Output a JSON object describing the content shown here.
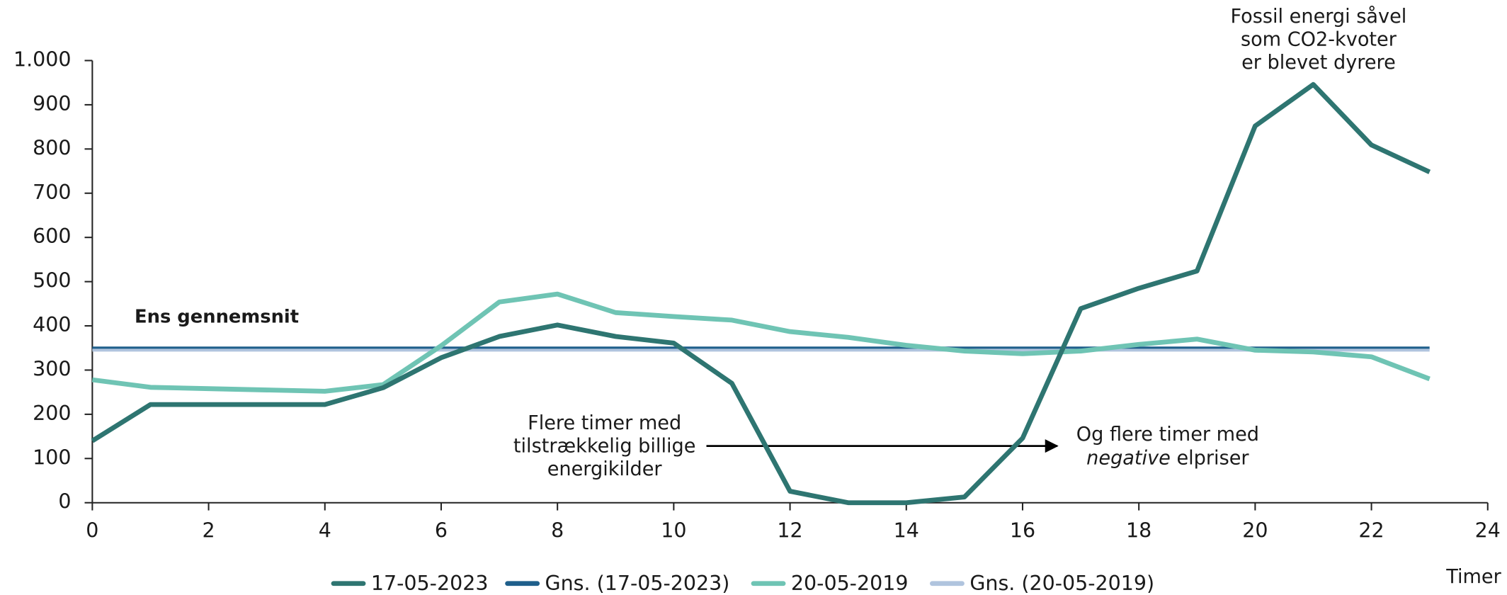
{
  "chart_data": {
    "type": "line",
    "x": [
      0,
      1,
      2,
      3,
      4,
      5,
      6,
      7,
      8,
      9,
      10,
      11,
      12,
      13,
      14,
      15,
      16,
      17,
      18,
      19,
      20,
      21,
      22,
      23
    ],
    "series": [
      {
        "name": "17-05-2023",
        "color": "#2e7571",
        "values": [
          140,
          222,
          222,
          222,
          222,
          260,
          328,
          376,
          402,
          376,
          361,
          270,
          26,
          0,
          0,
          13,
          146,
          439,
          485,
          524,
          852,
          946,
          809,
          748
        ]
      },
      {
        "name": "Gns. (17-05-2023)",
        "color": "#1f5f8b",
        "values": [
          350,
          350,
          350,
          350,
          350,
          350,
          350,
          350,
          350,
          350,
          350,
          350,
          350,
          350,
          350,
          350,
          350,
          350,
          350,
          350,
          350,
          350,
          350,
          350
        ]
      },
      {
        "name": "20-05-2019",
        "color": "#6fc4b4",
        "values": [
          278,
          261,
          258,
          255,
          252,
          267,
          355,
          454,
          472,
          430,
          421,
          413,
          387,
          374,
          356,
          343,
          337,
          343,
          358,
          370,
          345,
          341,
          330,
          280
        ]
      },
      {
        "name": "Gns. (20-05-2019)",
        "color": "#b0c4de",
        "values": [
          345,
          345,
          345,
          345,
          345,
          345,
          345,
          345,
          345,
          345,
          345,
          345,
          345,
          345,
          345,
          345,
          345,
          345,
          345,
          345,
          345,
          345,
          345,
          345
        ]
      }
    ],
    "xlim": [
      0,
      24
    ],
    "xticks": [
      0,
      2,
      4,
      6,
      8,
      10,
      12,
      14,
      16,
      18,
      20,
      22,
      24
    ],
    "ylim": [
      0,
      1000
    ],
    "yticks": [
      0,
      100,
      200,
      300,
      400,
      500,
      600,
      700,
      800,
      900,
      {
        "value": 1000,
        "label": "1.000"
      }
    ],
    "x_label": "Timer",
    "annotations": [
      {
        "lines": [
          "Fossil energi såvel",
          "som CO2-kvoter",
          "er blevet dyrere"
        ]
      },
      {
        "lines": [
          "Ens gennemsnit"
        ]
      },
      {
        "lines": [
          "Flere timer med",
          "tilstrækkelig billige",
          "energikilder"
        ]
      },
      {
        "lines": [
          "Og flere timer med"
        ],
        "italic": "negative",
        "rest": " elpriser"
      }
    ]
  }
}
